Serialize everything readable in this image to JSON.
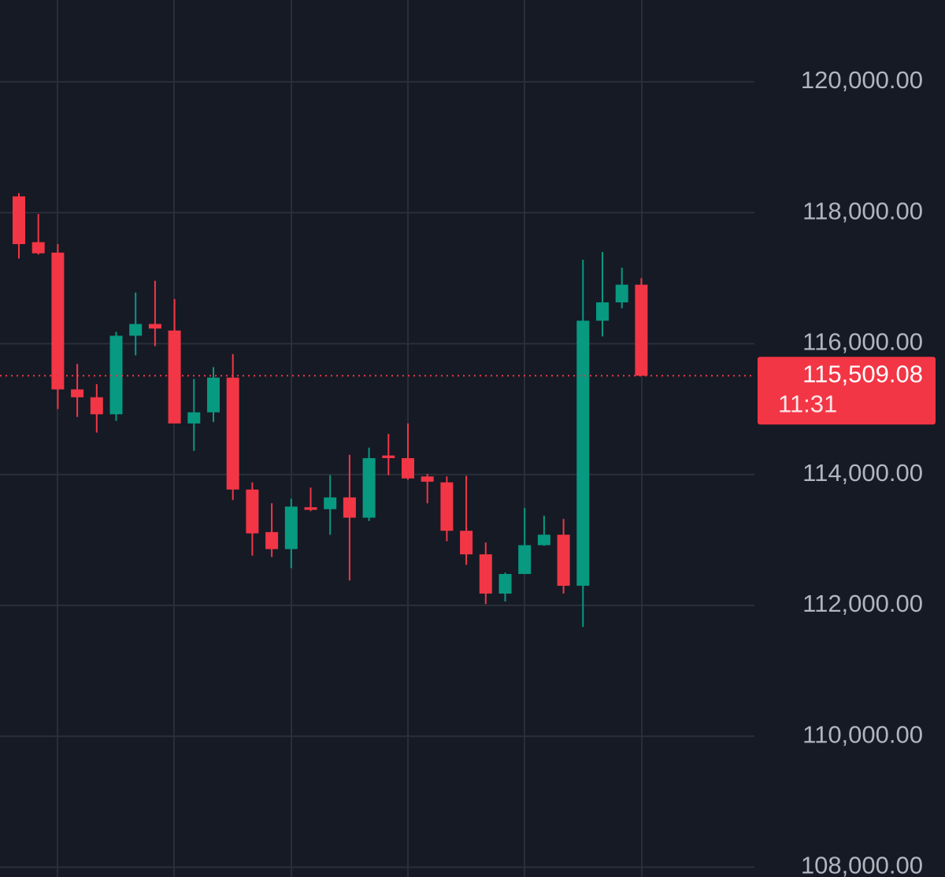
{
  "chart_data": {
    "type": "candlestick",
    "up_color": "#089981",
    "down_color": "#f23645",
    "grid": true,
    "ylim": [
      107850,
      121250
    ],
    "yticks": [
      {
        "value": 108000,
        "label": "108,000.00"
      },
      {
        "value": 110000,
        "label": "110,000.00"
      },
      {
        "value": 112000,
        "label": "112,000.00"
      },
      {
        "value": 114000,
        "label": "114,000.00"
      },
      {
        "value": 116000,
        "label": "116,000.00"
      },
      {
        "value": 118000,
        "label": "118,000.00"
      },
      {
        "value": 120000,
        "label": "120,000.00"
      }
    ],
    "open": [
      118250,
      117550,
      117390,
      115300,
      115180,
      114920,
      116120,
      116300,
      116200,
      114780,
      114950,
      115480,
      113770,
      113120,
      112860,
      113500,
      113470,
      113650,
      113340,
      114290,
      114250,
      113970,
      113880,
      113140,
      112780,
      112180,
      112480,
      112920,
      113080,
      112300,
      116350,
      116630,
      116900
    ],
    "high": [
      118300,
      117980,
      117520,
      115690,
      115380,
      116180,
      116780,
      116960,
      116680,
      115460,
      115640,
      115840,
      113880,
      113560,
      113630,
      113800,
      113990,
      114300,
      114410,
      114620,
      114780,
      114010,
      113970,
      113980,
      112960,
      112500,
      113490,
      113370,
      113320,
      117280,
      117400,
      117160,
      117000
    ],
    "low": [
      117300,
      117360,
      115000,
      114880,
      114640,
      114820,
      115820,
      115960,
      114780,
      114360,
      114800,
      113610,
      112760,
      112740,
      112570,
      113440,
      113080,
      112380,
      113290,
      113990,
      113920,
      113560,
      112980,
      112620,
      112020,
      112060,
      112480,
      112910,
      112180,
      111670,
      116110,
      116540,
      115509.08
    ],
    "close": [
      117520,
      117380,
      115300,
      115180,
      114920,
      116120,
      116300,
      116230,
      114780,
      114950,
      115480,
      113770,
      113100,
      112860,
      113510,
      113460,
      113650,
      113340,
      114250,
      114250,
      113940,
      113890,
      113140,
      112780,
      112180,
      112480,
      112920,
      113080,
      112300,
      116350,
      116630,
      116900,
      115509.08
    ],
    "last_price": {
      "value": 115509.08,
      "label": "115,509.08"
    },
    "countdown": "11:31"
  }
}
